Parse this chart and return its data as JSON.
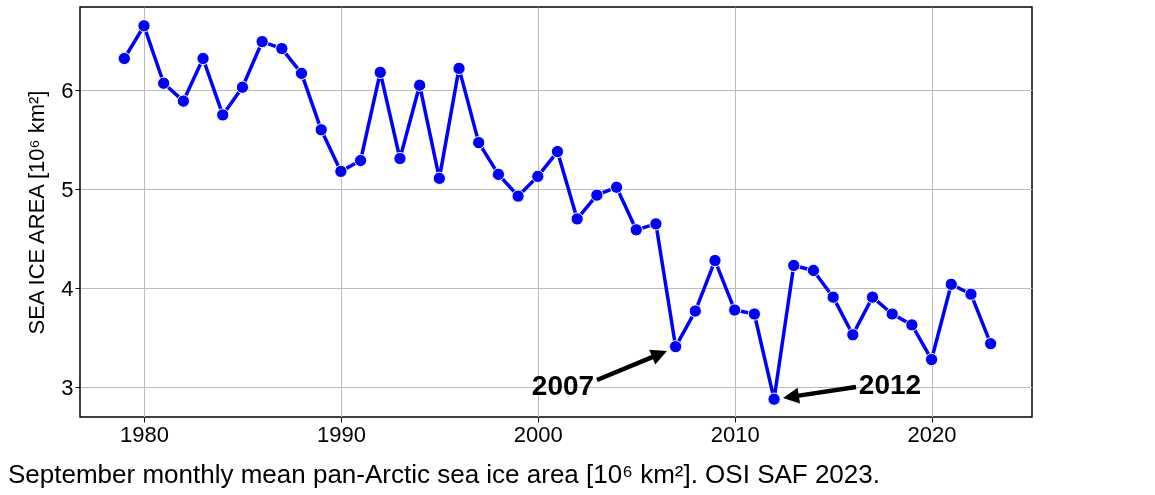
{
  "chart_data": {
    "type": "line",
    "ylabel": "SEA ICE AREA [10⁶ km²]",
    "x": [
      1979,
      1980,
      1981,
      1982,
      1983,
      1984,
      1985,
      1986,
      1987,
      1988,
      1989,
      1990,
      1991,
      1992,
      1993,
      1994,
      1995,
      1996,
      1997,
      1998,
      1999,
      2000,
      2001,
      2002,
      2003,
      2004,
      2005,
      2006,
      2007,
      2008,
      2009,
      2010,
      2011,
      2012,
      2013,
      2014,
      2015,
      2016,
      2017,
      2018,
      2019,
      2020,
      2021,
      2022,
      2023
    ],
    "series": [
      {
        "color": "#0000ff",
        "values": [
          6.32,
          6.65,
          6.07,
          5.89,
          6.32,
          5.75,
          6.03,
          6.49,
          6.42,
          6.17,
          5.6,
          5.18,
          5.29,
          6.18,
          5.31,
          6.05,
          5.11,
          6.22,
          5.47,
          5.15,
          4.93,
          5.13,
          5.38,
          4.7,
          4.94,
          5.02,
          4.59,
          4.65,
          3.41,
          3.77,
          4.28,
          3.78,
          3.74,
          2.88,
          4.23,
          4.18,
          3.91,
          3.53,
          3.91,
          3.74,
          3.63,
          3.28,
          4.04,
          3.94,
          3.44
        ]
      }
    ],
    "xlim": [
      1976.75,
      2025.1
    ],
    "ylim": [
      2.7,
      6.84
    ],
    "xticks": [
      1980,
      1990,
      2000,
      2010,
      2020
    ],
    "yticks": [
      3,
      4,
      5,
      6
    ],
    "grid": true,
    "marker": "circle",
    "line_style": "solid",
    "annotations": [
      "2007",
      "2012",
      "September monthly mean pan-Arctic sea ice area [10⁶ km²].  OSI SAF 2023."
    ]
  }
}
